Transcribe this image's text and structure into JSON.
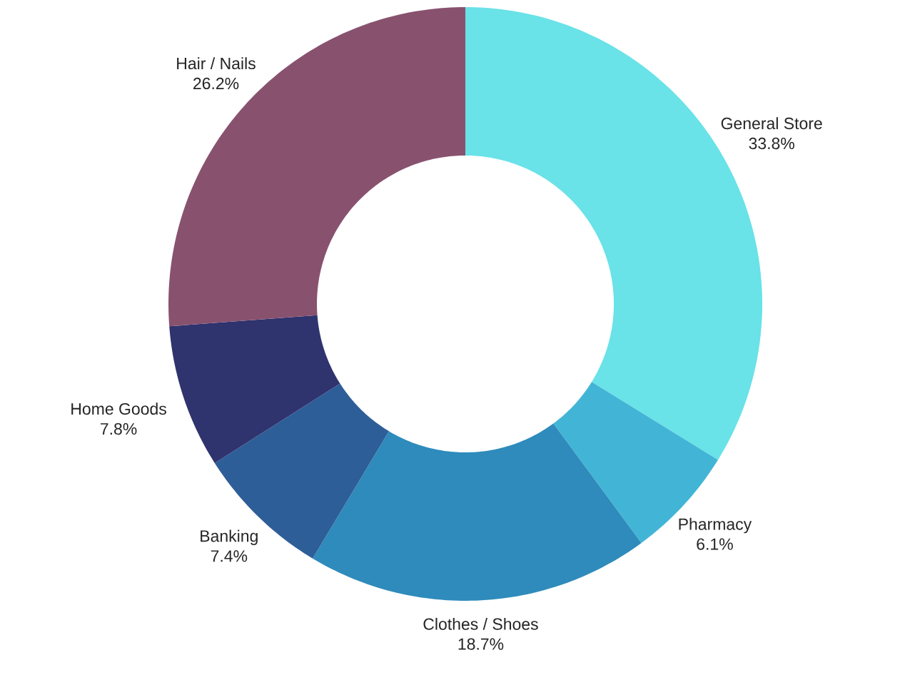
{
  "chart_data": {
    "type": "donut",
    "categories": [
      "General Store",
      "Pharmacy",
      "Clothes / Shoes",
      "Banking",
      "Home Goods",
      "Hair / Nails"
    ],
    "values": [
      33.8,
      6.1,
      18.7,
      7.4,
      7.8,
      26.2
    ],
    "value_labels": [
      "33.8%",
      "6.1%",
      "18.7%",
      "7.4%",
      "7.8%",
      "26.2%"
    ],
    "colors": [
      "#69e2e8",
      "#42b5d6",
      "#2e8bbb",
      "#2e5e98",
      "#2f336e",
      "#88526f"
    ]
  }
}
